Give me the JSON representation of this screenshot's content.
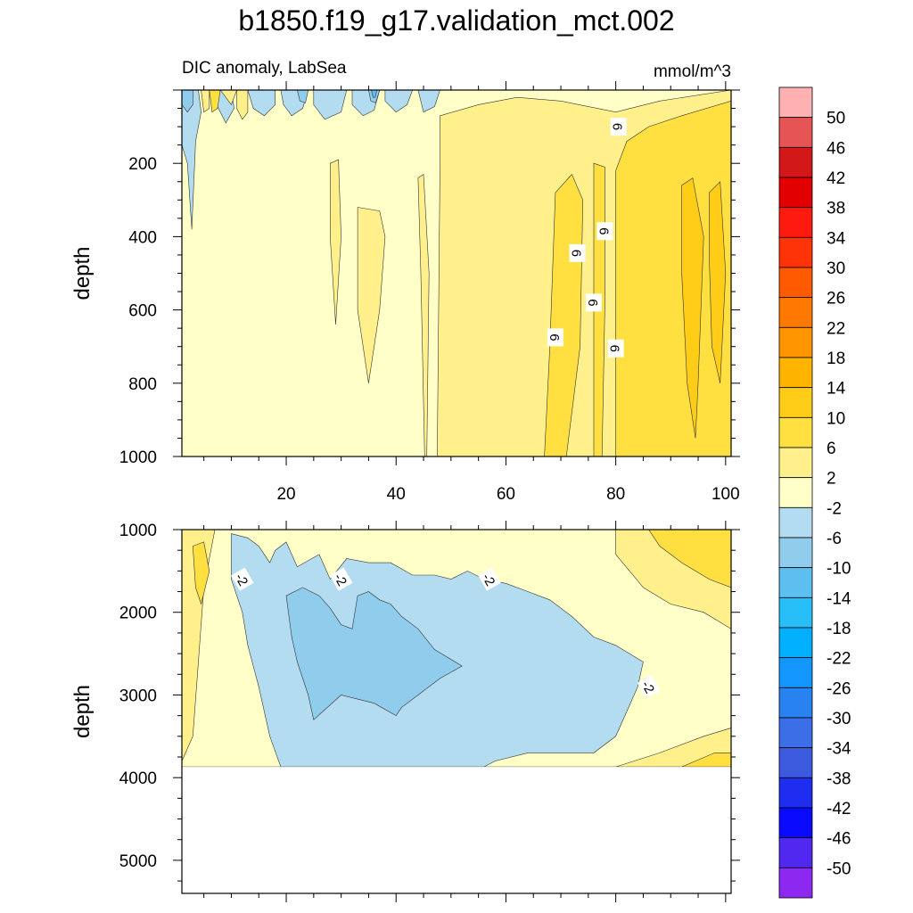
{
  "figure": {
    "title": "b1850.f19_g17.validation_mct.002",
    "subtitle_left": "DIC anomaly, LabSea",
    "subtitle_right": "mmol/m^3"
  },
  "chart_data": [
    {
      "type": "contour",
      "panel": "upper",
      "ylabel": "depth",
      "xlim": [
        1,
        101
      ],
      "ylim": [
        0,
        1000
      ],
      "y_reversed": true,
      "xticks": [
        20,
        40,
        60,
        80,
        100
      ],
      "yticks": [
        200,
        400,
        600,
        800,
        1000
      ],
      "contour_labels": [
        {
          "value": "6",
          "x": 80.5,
          "y": 100
        },
        {
          "value": "6",
          "x": 78,
          "y": 385
        },
        {
          "value": "6",
          "x": 73,
          "y": 445
        },
        {
          "value": "6",
          "x": 76,
          "y": 580
        },
        {
          "value": "6",
          "x": 69,
          "y": 675
        },
        {
          "value": "6",
          "x": 80,
          "y": 705
        }
      ]
    },
    {
      "type": "contour",
      "panel": "lower",
      "ylabel": "depth",
      "xlim": [
        1,
        101
      ],
      "ylim": [
        1000,
        5400
      ],
      "y_reversed": true,
      "yticks": [
        1000,
        2000,
        3000,
        4000,
        5000
      ],
      "contour_labels": [
        {
          "value": "-2",
          "x": 12,
          "y": 1600
        },
        {
          "value": "-2",
          "x": 30,
          "y": 1600
        },
        {
          "value": "-2",
          "x": 57,
          "y": 1600
        },
        {
          "value": "-2",
          "x": 86,
          "y": 2900
        }
      ]
    }
  ],
  "colorbar": {
    "levels": [
      "50",
      "46",
      "42",
      "38",
      "34",
      "30",
      "26",
      "22",
      "18",
      "14",
      "10",
      "6",
      "2",
      "-2",
      "-6",
      "-10",
      "-14",
      "-18",
      "-22",
      "-26",
      "-30",
      "-34",
      "-38",
      "-42",
      "-46",
      "-50"
    ],
    "colors": [
      "#ffb0b0",
      "#e65555",
      "#d21818",
      "#e20000",
      "#ff1a10",
      "#ff3208",
      "#ff5a00",
      "#ff7800",
      "#ff9600",
      "#ffb400",
      "#ffcc18",
      "#ffe040",
      "#fff08c",
      "#ffffc8",
      "#b4dcf0",
      "#90ccec",
      "#5cbff0",
      "#28bff8",
      "#00b0ff",
      "#1496ff",
      "#2882f0",
      "#3c6ee8",
      "#3c5ade",
      "#1e2df0",
      "#0a0aff",
      "#5028f0",
      "#8c28f0"
    ]
  }
}
